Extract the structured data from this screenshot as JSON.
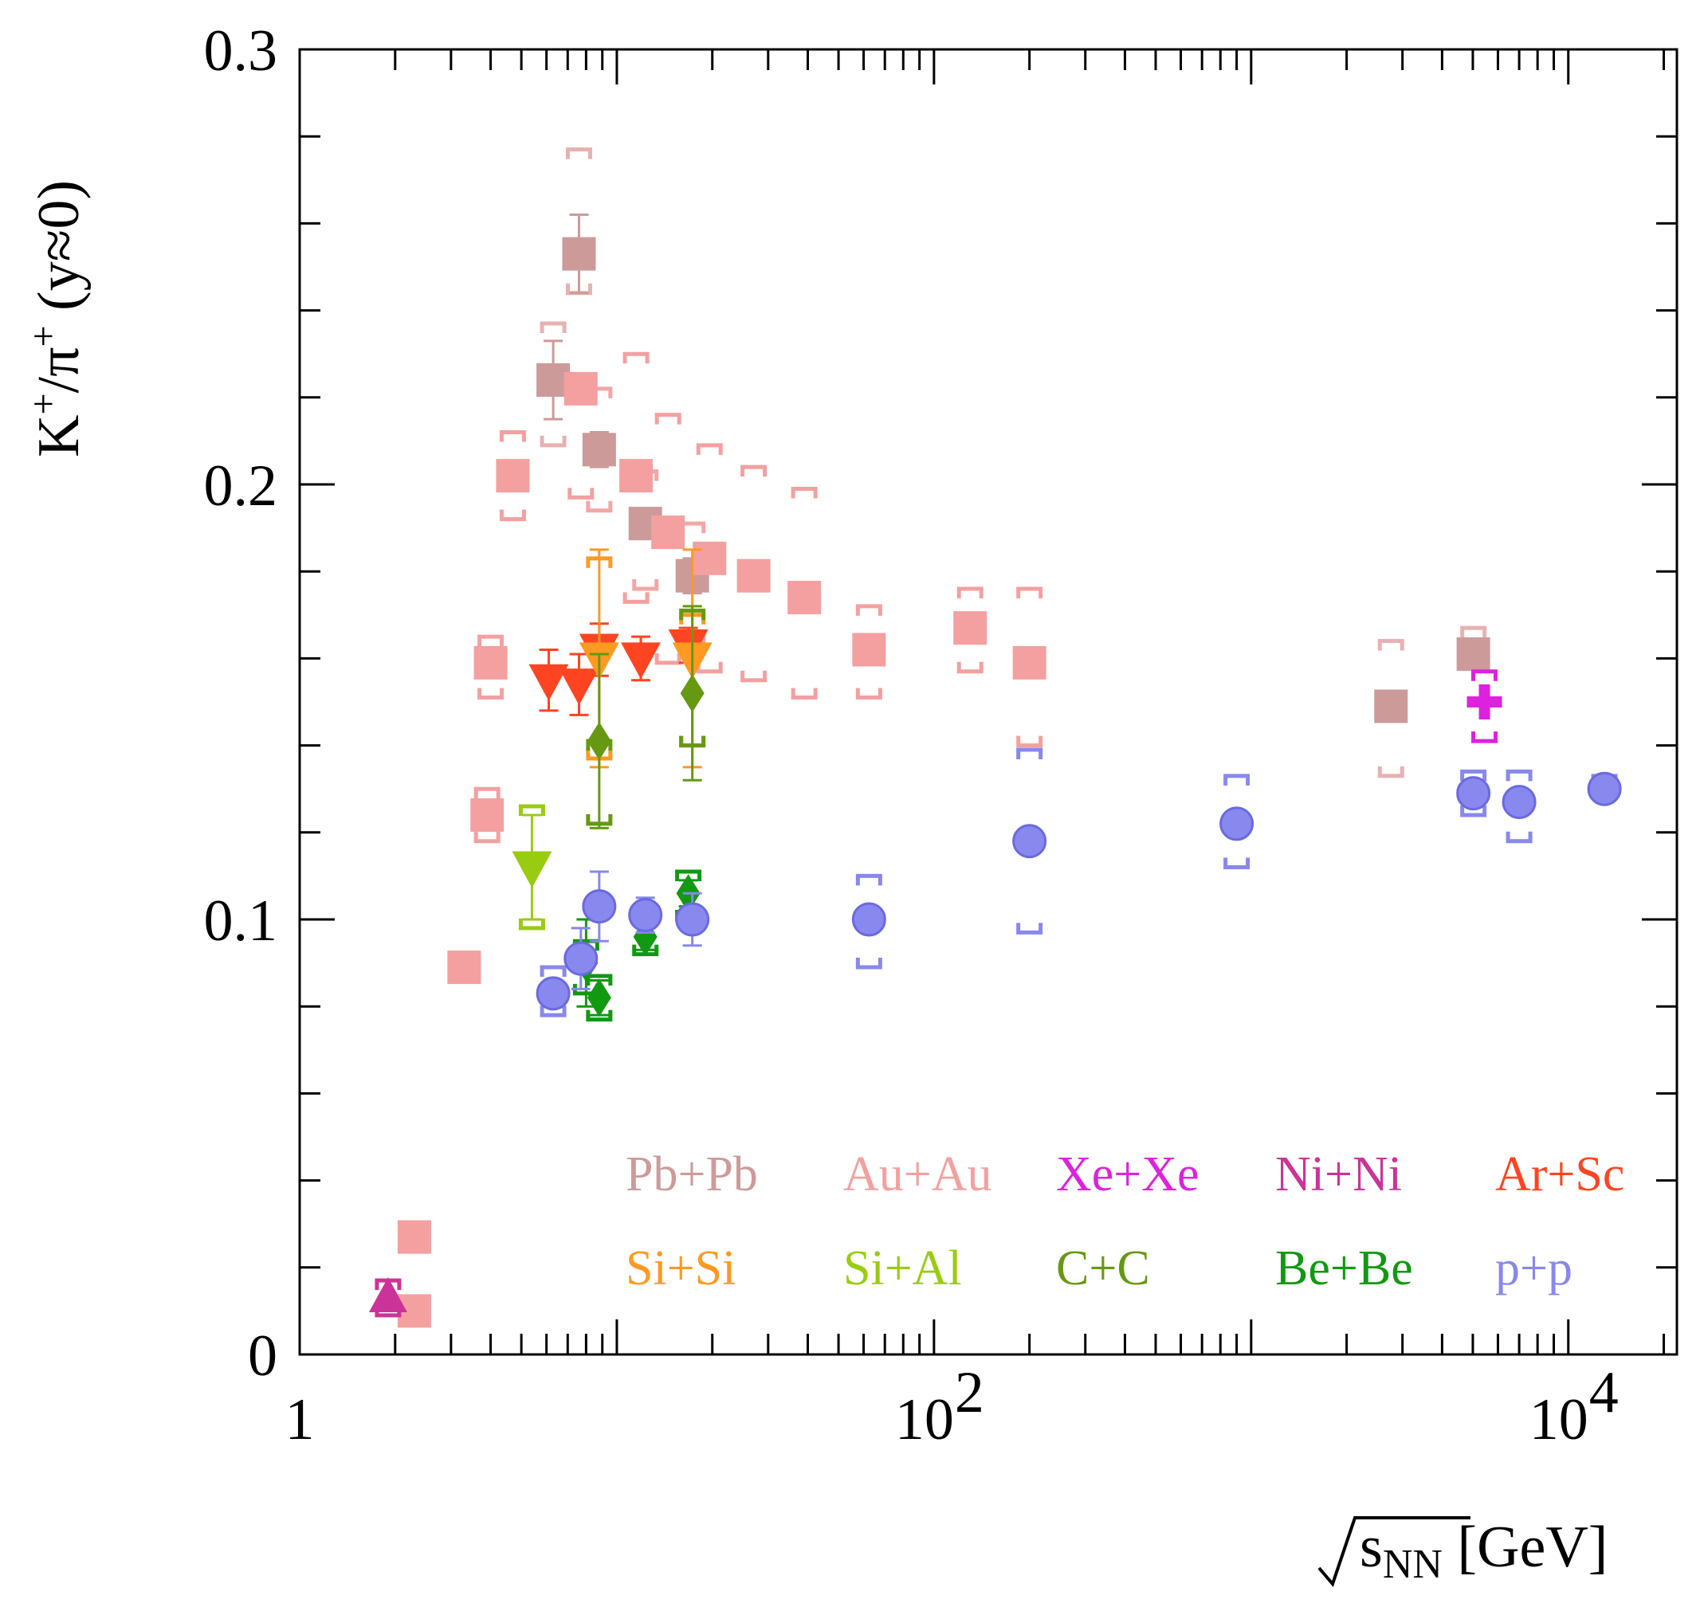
{
  "chart_data": {
    "type": "scatter",
    "x_scale": "log",
    "xlim": [
      1,
      22000
    ],
    "ylim": [
      0,
      0.3
    ],
    "ylabel": "K⁺/π⁺ (y≈0)",
    "xlabel": "√sNN [GeV]",
    "x_ticks": [
      {
        "value": 1,
        "label": "1",
        "exp": ""
      },
      {
        "value": 100,
        "label": "10",
        "exp": "2"
      },
      {
        "value": 10000,
        "label": "10",
        "exp": "4"
      }
    ],
    "y_ticks": [
      {
        "value": 0,
        "label": "0"
      },
      {
        "value": 0.1,
        "label": "0.1"
      },
      {
        "value": 0.2,
        "label": "0.2"
      },
      {
        "value": 0.3,
        "label": "0.3"
      }
    ],
    "grid": false,
    "legend_position": "bottom-right",
    "series": [
      {
        "name": "Pb+Pb",
        "color": "#cd9a9a",
        "marker": "square",
        "points": [
          {
            "x": 6.3,
            "y": 0.224,
            "err": 0.009,
            "sys": [
              0.209,
              0.237
            ],
            "sysColor": "#e8b1b1"
          },
          {
            "x": 7.6,
            "y": 0.253,
            "err": 0.009,
            "sys": [
              0.244,
              0.277
            ],
            "sysColor": "#e8b1b1"
          },
          {
            "x": 8.8,
            "y": 0.208,
            "err": 0.004,
            "sys": [
              0.194,
              0.222
            ],
            "sysColor": "#f4a6a6"
          },
          {
            "x": 12.3,
            "y": 0.191,
            "err": 0.003,
            "sys": [
              0.176,
              0.203
            ],
            "sysColor": "#f4a6a6"
          },
          {
            "x": 17.3,
            "y": 0.179,
            "err": 0.004,
            "sys": [
              0.164,
              0.191
            ],
            "sysColor": "#f4a6a6"
          },
          {
            "x": 2760,
            "y": 0.149,
            "err": 0.002,
            "sys": [
              0.133,
              0.164
            ],
            "sysColor": "#e8b1b1"
          },
          {
            "x": 5020,
            "y": 0.161,
            "err": 0.002,
            "sys": [
              0.161,
              0.167
            ],
            "sysColor": "#e8b1b1"
          }
        ]
      },
      {
        "name": "Au+Au",
        "color": "#f4a0a0",
        "marker": "square",
        "points": [
          {
            "x": 2.3,
            "y": 0.027
          },
          {
            "x": 2.3,
            "y": 0.01
          },
          {
            "x": 3.3,
            "y": 0.089
          },
          {
            "x": 3.9,
            "y": 0.124,
            "sys": [
              0.118,
              0.13
            ]
          },
          {
            "x": 4.0,
            "y": 0.159,
            "sys": [
              0.151,
              0.165
            ]
          },
          {
            "x": 4.7,
            "y": 0.202,
            "sys": [
              0.192,
              0.212
            ]
          },
          {
            "x": 7.7,
            "y": 0.222,
            "sys": [
              0.197,
              0.221
            ]
          },
          {
            "x": 11.5,
            "y": 0.202,
            "sys": [
              0.173,
              0.23
            ]
          },
          {
            "x": 14.5,
            "y": 0.189,
            "sys": [
              0.159,
              0.216
            ]
          },
          {
            "x": 19.6,
            "y": 0.183,
            "sys": [
              0.157,
              0.209
            ]
          },
          {
            "x": 27,
            "y": 0.179,
            "sys": [
              0.155,
              0.204
            ]
          },
          {
            "x": 39,
            "y": 0.174,
            "sys": [
              0.151,
              0.199
            ]
          },
          {
            "x": 62.4,
            "y": 0.162,
            "sys": [
              0.151,
              0.172
            ]
          },
          {
            "x": 130,
            "y": 0.167,
            "sys": [
              0.157,
              0.176
            ]
          },
          {
            "x": 200,
            "y": 0.159,
            "sys": [
              0.14,
              0.176
            ]
          }
        ]
      },
      {
        "name": "Xe+Xe",
        "color": "#dd22dd",
        "marker": "cross",
        "points": [
          {
            "x": 5440,
            "y": 0.15,
            "sys": [
              0.141,
              0.157
            ]
          }
        ]
      },
      {
        "name": "Ni+Ni",
        "color": "#cc3399",
        "marker": "triangle-up",
        "points": [
          {
            "x": 1.9,
            "y": 0.013,
            "sys": [
              0.009,
              0.017
            ]
          }
        ]
      },
      {
        "name": "Ar+Sc",
        "color": "#ff4422",
        "marker": "triangle-down",
        "points": [
          {
            "x": 6.1,
            "y": 0.155,
            "err": 0.007
          },
          {
            "x": 7.6,
            "y": 0.154,
            "err": 0.007
          },
          {
            "x": 8.8,
            "y": 0.162,
            "err": 0.006
          },
          {
            "x": 11.9,
            "y": 0.16,
            "err": 0.005
          },
          {
            "x": 16.8,
            "y": 0.163,
            "err": 0.004
          }
        ]
      },
      {
        "name": "Si+Si",
        "color": "#ff9922",
        "marker": "triangle-down",
        "points": [
          {
            "x": 8.8,
            "y": 0.16,
            "err": 0.025,
            "sys": [
              0.137,
              0.183
            ]
          },
          {
            "x": 17.3,
            "y": 0.16,
            "err": 0.025,
            "sys": [
              0.14,
              0.17
            ]
          }
        ]
      },
      {
        "name": "Si+Al",
        "color": "#99cc11",
        "marker": "triangle-down",
        "points": [
          {
            "x": 5.4,
            "y": 0.112,
            "err": 0.012,
            "sys": [
              0.098,
              0.126
            ]
          }
        ]
      },
      {
        "name": "C+C",
        "color": "#669911",
        "marker": "diamond",
        "points": [
          {
            "x": 8.8,
            "y": 0.141,
            "err": 0.02,
            "sys": [
              0.122,
              0.141
            ]
          },
          {
            "x": 17.3,
            "y": 0.152,
            "err": 0.02,
            "sys": [
              0.14,
              0.171
            ]
          }
        ]
      },
      {
        "name": "Be+Be",
        "color": "#119911",
        "marker": "diamond",
        "points": [
          {
            "x": 8.0,
            "y": 0.09,
            "err": 0.01,
            "sys": [
              0.083,
              0.095
            ]
          },
          {
            "x": 8.8,
            "y": 0.082,
            "err": 0.004,
            "sys": [
              0.077,
              0.087
            ]
          },
          {
            "x": 12.3,
            "y": 0.096,
            "err": 0.003,
            "sys": [
              0.092,
              0.101
            ]
          },
          {
            "x": 16.8,
            "y": 0.106,
            "err": 0.003,
            "sys": [
              0.1,
              0.111
            ]
          }
        ]
      },
      {
        "name": "p+p",
        "color": "#8888ee",
        "marker": "circle",
        "points": [
          {
            "x": 6.3,
            "y": 0.083,
            "sys": [
              0.078,
              0.089
            ]
          },
          {
            "x": 7.7,
            "y": 0.091,
            "err": 0.007
          },
          {
            "x": 8.8,
            "y": 0.103,
            "err": 0.008
          },
          {
            "x": 12.3,
            "y": 0.101,
            "err": 0.004
          },
          {
            "x": 17.3,
            "y": 0.1,
            "err": 0.006
          },
          {
            "x": 62.4,
            "y": 0.1,
            "sys": [
              0.089,
              0.11
            ]
          },
          {
            "x": 200,
            "y": 0.118,
            "sys": [
              0.097,
              0.139
            ]
          },
          {
            "x": 900,
            "y": 0.122,
            "sys": [
              0.112,
              0.133
            ]
          },
          {
            "x": 5020,
            "y": 0.129,
            "sys": [
              0.124,
              0.134
            ]
          },
          {
            "x": 7000,
            "y": 0.127,
            "sys": [
              0.118,
              0.134
            ]
          },
          {
            "x": 13000,
            "y": 0.13,
            "sys": [
              0.128,
              0.133
            ]
          }
        ]
      }
    ]
  }
}
